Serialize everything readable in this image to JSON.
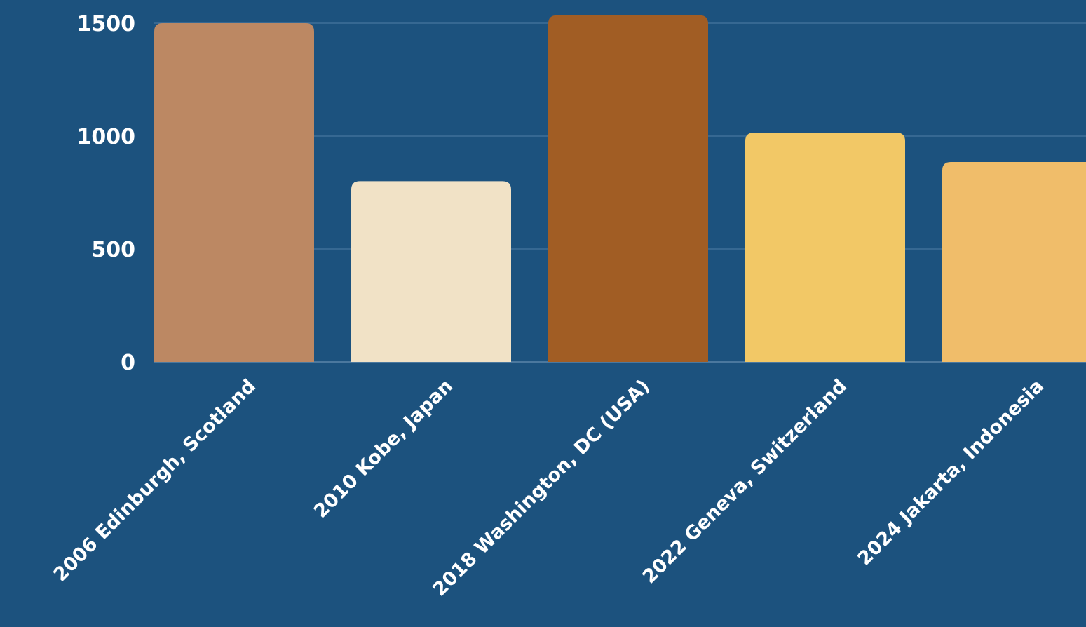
{
  "chart_data": {
    "type": "bar",
    "categories": [
      "2006 Edinburgh, Scotland",
      "2010 Kobe, Japan",
      "2018 Washington, DC (USA)",
      "2022 Geneva, Switzerland",
      "2024 Jakarta, Indonesia"
    ],
    "values": [
      1500,
      800,
      1535,
      1015,
      885
    ],
    "title": "",
    "xlabel": "",
    "ylabel": "",
    "ylim": [
      0,
      1500
    ],
    "yticks": [
      "0",
      "500",
      "1000",
      "1500"
    ],
    "grid": true,
    "legend": "none",
    "bar_colors": [
      "#bc8863",
      "#f1e2c6",
      "#a15d24",
      "#f2c866",
      "#f0bd6a"
    ]
  },
  "colors": {
    "background": "#1c527e",
    "gridline": "#4f7ea5",
    "text": "#ffffff"
  }
}
